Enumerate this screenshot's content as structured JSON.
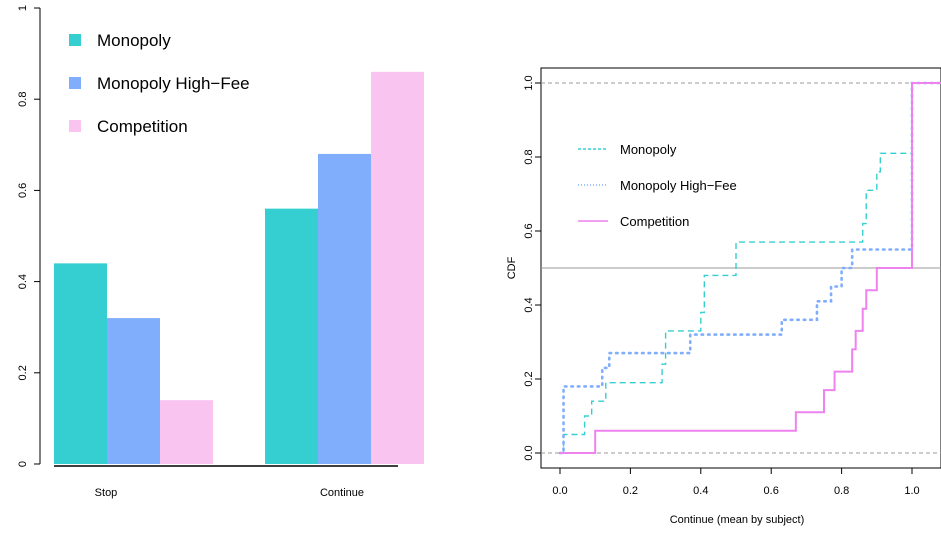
{
  "chart_data": [
    {
      "type": "bar",
      "categories": [
        "Stop",
        "Continue"
      ],
      "series": [
        {
          "name": "Monopoly",
          "values": [
            0.44,
            0.56
          ],
          "color": "#36CFD1"
        },
        {
          "name": "Monopoly High−Fee",
          "values": [
            0.32,
            0.68
          ],
          "color": "#80AEFD"
        },
        {
          "name": "Competition",
          "values": [
            0.14,
            0.86
          ],
          "color": "#F9C5F0"
        }
      ],
      "ylim": [
        0,
        1
      ],
      "yticks": [
        "0",
        "0.2",
        "0.4",
        "0.6",
        "0.8",
        "1"
      ],
      "legend_position": "top-left",
      "grid": false
    },
    {
      "type": "line",
      "chart_kind": "empirical CDF (step)",
      "xlabel": "Continue (mean by subject)",
      "ylabel": "CDF",
      "xlim": [
        0,
        1
      ],
      "ylim": [
        0,
        1
      ],
      "xticks": [
        "0.0",
        "0.2",
        "0.4",
        "0.6",
        "0.8",
        "1.0"
      ],
      "yticks": [
        "0.0",
        "0.2",
        "0.4",
        "0.6",
        "0.8",
        "1.0"
      ],
      "reference_lines": [
        0,
        0.5,
        1
      ],
      "legend_position": "center-left",
      "series": [
        {
          "name": "Monopoly",
          "style": "dashed",
          "color": "#36CFD1",
          "steps": [
            [
              0,
              0.0
            ],
            [
              0.01,
              0.05
            ],
            [
              0.07,
              0.1
            ],
            [
              0.09,
              0.14
            ],
            [
              0.13,
              0.19
            ],
            [
              0.29,
              0.24
            ],
            [
              0.3,
              0.33
            ],
            [
              0.4,
              0.38
            ],
            [
              0.41,
              0.48
            ],
            [
              0.5,
              0.57
            ],
            [
              0.86,
              0.62
            ],
            [
              0.87,
              0.71
            ],
            [
              0.9,
              0.76
            ],
            [
              0.91,
              0.81
            ],
            [
              1.0,
              1.0
            ]
          ]
        },
        {
          "name": "Monopoly High−Fee",
          "style": "dotted",
          "color": "#80AEFD",
          "steps": [
            [
              0,
              0.0
            ],
            [
              0.01,
              0.18
            ],
            [
              0.12,
              0.23
            ],
            [
              0.14,
              0.27
            ],
            [
              0.37,
              0.32
            ],
            [
              0.63,
              0.36
            ],
            [
              0.73,
              0.41
            ],
            [
              0.77,
              0.45
            ],
            [
              0.8,
              0.5
            ],
            [
              0.83,
              0.55
            ],
            [
              1.0,
              1.0
            ]
          ]
        },
        {
          "name": "Competition",
          "style": "solid",
          "color": "#EE82EE",
          "steps": [
            [
              0,
              0.0
            ],
            [
              0.1,
              0.06
            ],
            [
              0.67,
              0.11
            ],
            [
              0.75,
              0.17
            ],
            [
              0.78,
              0.22
            ],
            [
              0.83,
              0.28
            ],
            [
              0.84,
              0.33
            ],
            [
              0.86,
              0.39
            ],
            [
              0.87,
              0.44
            ],
            [
              0.9,
              0.5
            ],
            [
              1.0,
              1.0
            ]
          ]
        }
      ]
    }
  ]
}
